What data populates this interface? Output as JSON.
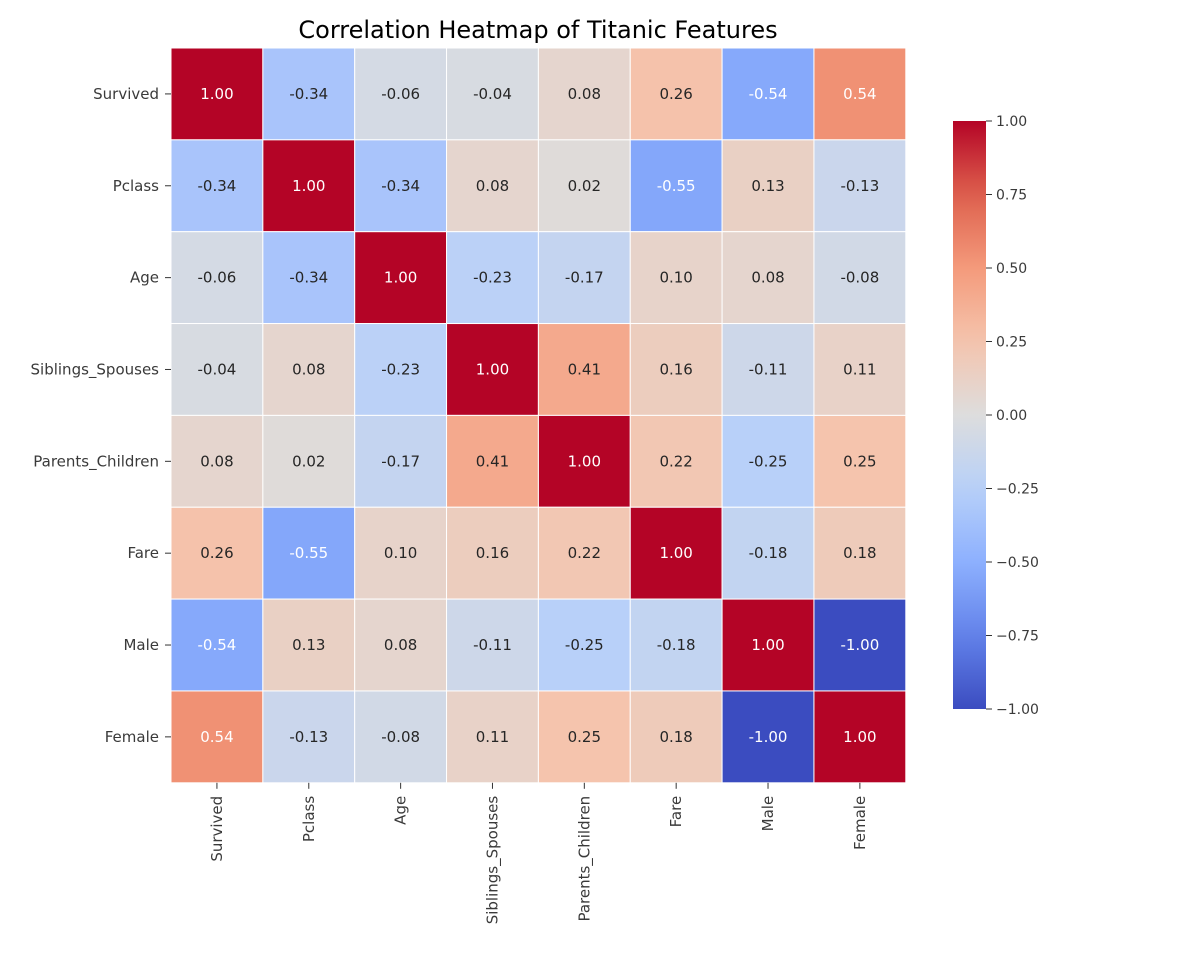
{
  "chart_data": {
    "type": "heatmap",
    "title": "Correlation Heatmap of Titanic Features",
    "xlabel": "",
    "ylabel": "",
    "rows": [
      "Survived",
      "Pclass",
      "Age",
      "Siblings_Spouses",
      "Parents_Children",
      "Fare",
      "Male",
      "Female"
    ],
    "columns": [
      "Survived",
      "Pclass",
      "Age",
      "Siblings_Spouses",
      "Parents_Children",
      "Fare",
      "Male",
      "Female"
    ],
    "values": [
      [
        1.0,
        -0.34,
        -0.06,
        -0.04,
        0.08,
        0.26,
        -0.54,
        0.54
      ],
      [
        -0.34,
        1.0,
        -0.34,
        0.08,
        0.02,
        -0.55,
        0.13,
        -0.13
      ],
      [
        -0.06,
        -0.34,
        1.0,
        -0.23,
        -0.17,
        0.1,
        0.08,
        -0.08
      ],
      [
        -0.04,
        0.08,
        -0.23,
        1.0,
        0.41,
        0.16,
        -0.11,
        0.11
      ],
      [
        0.08,
        0.02,
        -0.17,
        0.41,
        1.0,
        0.22,
        -0.25,
        0.25
      ],
      [
        0.26,
        -0.55,
        0.1,
        0.16,
        0.22,
        1.0,
        -0.18,
        0.18
      ],
      [
        -0.54,
        0.13,
        0.08,
        -0.11,
        -0.25,
        -0.18,
        1.0,
        -1.0
      ],
      [
        0.54,
        -0.13,
        -0.08,
        0.11,
        0.25,
        0.18,
        -1.0,
        1.0
      ]
    ],
    "value_format": "0.00",
    "colormap": "coolwarm",
    "color_range": [
      -1.0,
      1.0
    ],
    "colorbar_ticks": [
      1.0,
      0.75,
      0.5,
      0.25,
      0.0,
      -0.25,
      -0.5,
      -0.75,
      -1.0
    ],
    "colorbar_tick_labels": [
      "1.00",
      "0.75",
      "0.50",
      "0.25",
      "0.00",
      "−0.25",
      "−0.50",
      "−0.75",
      "−1.00"
    ],
    "grid": true,
    "legend": "colorbar right"
  }
}
